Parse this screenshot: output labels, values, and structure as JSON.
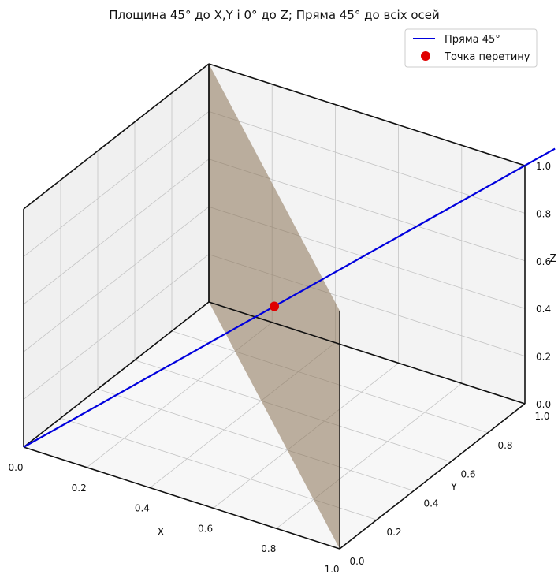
{
  "chart_data": {
    "type": "3d-line-surface",
    "title": "Площина 45° до X,Y і 0° до Z; Пряма 45° до всіх осей",
    "xlabel": "X",
    "ylabel": "Y",
    "zlabel": "Z",
    "xlim": [
      0,
      1
    ],
    "ylim": [
      0,
      1
    ],
    "zlim": [
      0,
      1
    ],
    "x_ticks": [
      "0.0",
      "0.2",
      "0.4",
      "0.6",
      "0.8",
      "1.0"
    ],
    "y_ticks": [
      "0.0",
      "0.2",
      "0.4",
      "0.6",
      "0.8",
      "1.0"
    ],
    "z_ticks": [
      "0.0",
      "0.2",
      "0.4",
      "0.6",
      "0.8",
      "1.0"
    ],
    "grid": true,
    "legend_position": "top-right",
    "series": [
      {
        "name": "Пряма 45°",
        "kind": "line",
        "color": "#0000dd",
        "points": [
          [
            0,
            0,
            0
          ],
          [
            1,
            1,
            1
          ]
        ]
      },
      {
        "name": "Точка перетину",
        "kind": "point",
        "color": "#e00000",
        "points": [
          [
            0.5,
            0.5,
            0.5
          ]
        ]
      }
    ],
    "plane": {
      "equation": "x + y = 1",
      "color": "#8b7355",
      "corners": [
        [
          1,
          0,
          0
        ],
        [
          0,
          1,
          0
        ],
        [
          0,
          1,
          1
        ],
        [
          1,
          0,
          1
        ]
      ]
    }
  }
}
